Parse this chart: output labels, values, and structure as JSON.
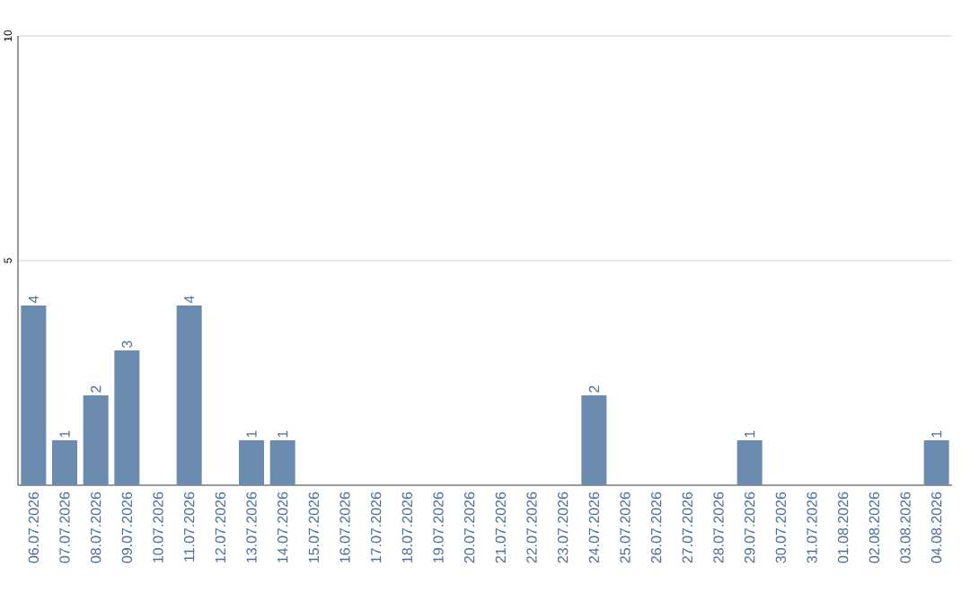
{
  "chart_data": {
    "type": "bar",
    "categories": [
      "06.07.2026",
      "07.07.2026",
      "08.07.2026",
      "09.07.2026",
      "10.07.2026",
      "11.07.2026",
      "12.07.2026",
      "13.07.2026",
      "14.07.2026",
      "15.07.2026",
      "16.07.2026",
      "17.07.2026",
      "18.07.2026",
      "19.07.2026",
      "20.07.2026",
      "21.07.2026",
      "22.07.2026",
      "23.07.2026",
      "24.07.2026",
      "25.07.2026",
      "26.07.2026",
      "27.07.2026",
      "28.07.2026",
      "29.07.2026",
      "30.07.2026",
      "31.07.2026",
      "01.08.2026",
      "02.08.2026",
      "03.08.2026",
      "04.08.2026"
    ],
    "values": [
      4,
      1,
      2,
      3,
      0,
      4,
      0,
      1,
      1,
      0,
      0,
      0,
      0,
      0,
      0,
      0,
      0,
      0,
      2,
      0,
      0,
      0,
      0,
      1,
      0,
      0,
      0,
      0,
      0,
      1
    ],
    "value_labels": [
      "4",
      "1",
      "2",
      "3",
      null,
      "4",
      null,
      "1",
      "1",
      null,
      null,
      null,
      null,
      null,
      null,
      null,
      null,
      null,
      "2",
      null,
      null,
      null,
      null,
      "1",
      null,
      null,
      null,
      null,
      null,
      "1"
    ],
    "color": "#6b8cae",
    "ylim": [
      0,
      10
    ],
    "yticks": [
      5,
      10
    ],
    "grid": "y"
  }
}
